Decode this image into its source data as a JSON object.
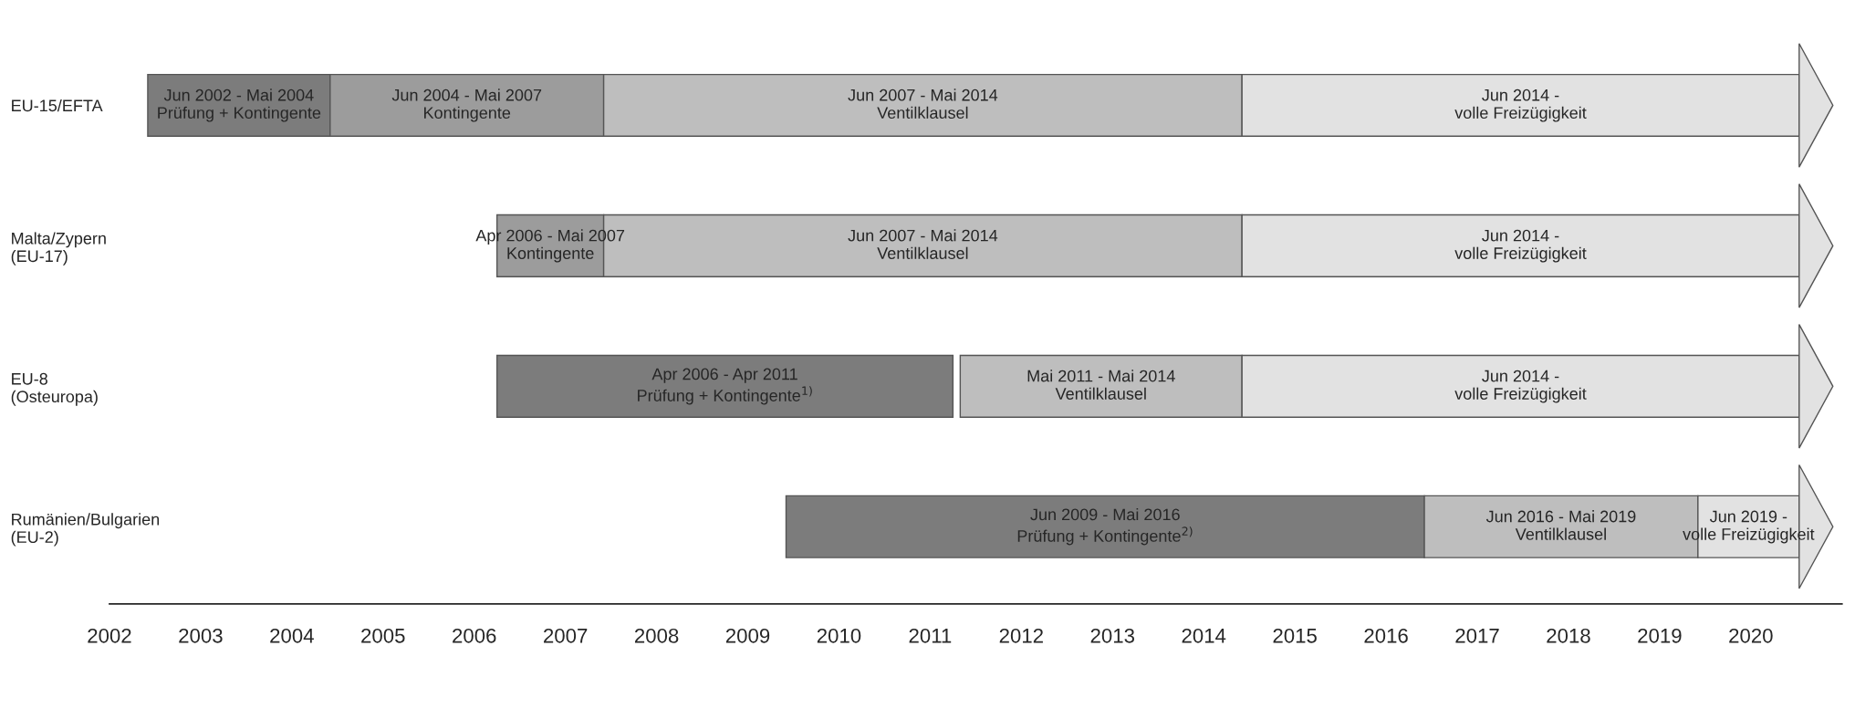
{
  "chart_data": {
    "type": "bar",
    "orientation": "horizontal",
    "categories": [
      "EU-15/EFTA",
      "Malta/Zypern\n(EU-17)",
      "EU-8\n(Osteuropa)",
      "Rumänien/Bulgarien\n(EU-2)"
    ],
    "series": [
      {
        "color": "#7c7c7c",
        "values": [
          2.0,
          null,
          5.0,
          7.0
        ],
        "base": [
          2002.42,
          null,
          2006.25,
          2009.42
        ],
        "value_labels": [
          "Jun 2002 - Mai 2004\nPrüfung + Kontingente",
          null,
          "Apr 2006 - Apr 2011\nPrüfung + Kontingente$^{1)}$",
          "Jun 2009 - Mai 2016\nPrüfung + Kontingente$^{2)}$"
        ]
      },
      {
        "color": "#9c9c9c",
        "values": [
          3.0,
          1.17,
          null,
          null
        ],
        "base": [
          2004.42,
          2006.25,
          null,
          null
        ],
        "value_labels": [
          "Jun 2004 - Mai 2007\nKontingente",
          "Apr 2006 - Mai 2007\nKontingente",
          null,
          null
        ]
      },
      {
        "color": "#bebebe",
        "values": [
          7.0,
          7.0,
          3.09,
          3.0
        ],
        "base": [
          2007.42,
          2007.42,
          2011.33,
          2016.42
        ],
        "value_labels": [
          "Jun 2007 - Mai 2014\nVentilklausel",
          "Jun 2007 - Mai 2014\nVentilklausel",
          "Mai 2011 - Mai 2014\nVentilklausel",
          "Jun 2016 - Mai 2019\nVentilklausel"
        ]
      },
      {
        "color": "#e2e2e2",
        "values": [
          6.11,
          6.11,
          6.11,
          1.11
        ],
        "base": [
          2014.42,
          2014.42,
          2014.42,
          2019.42
        ],
        "value_labels": [
          "Jun 2014 -\nvolle Freizügigkeit",
          "Jun 2014 -\nvolle Freizügigkeit",
          "Jun 2014 -\nvolle Freizügigkeit",
          "Jun 2019 -\nvolle Freizügigkeit"
        ]
      }
    ],
    "xlim": [
      2002,
      2021
    ],
    "xticks": [
      2002,
      2003,
      2004,
      2005,
      2006,
      2007,
      2008,
      2009,
      2010,
      2011,
      2012,
      2013,
      2014,
      2015,
      2016,
      2017,
      2018,
      2019,
      2020
    ],
    "grid": false,
    "legend": false
  }
}
